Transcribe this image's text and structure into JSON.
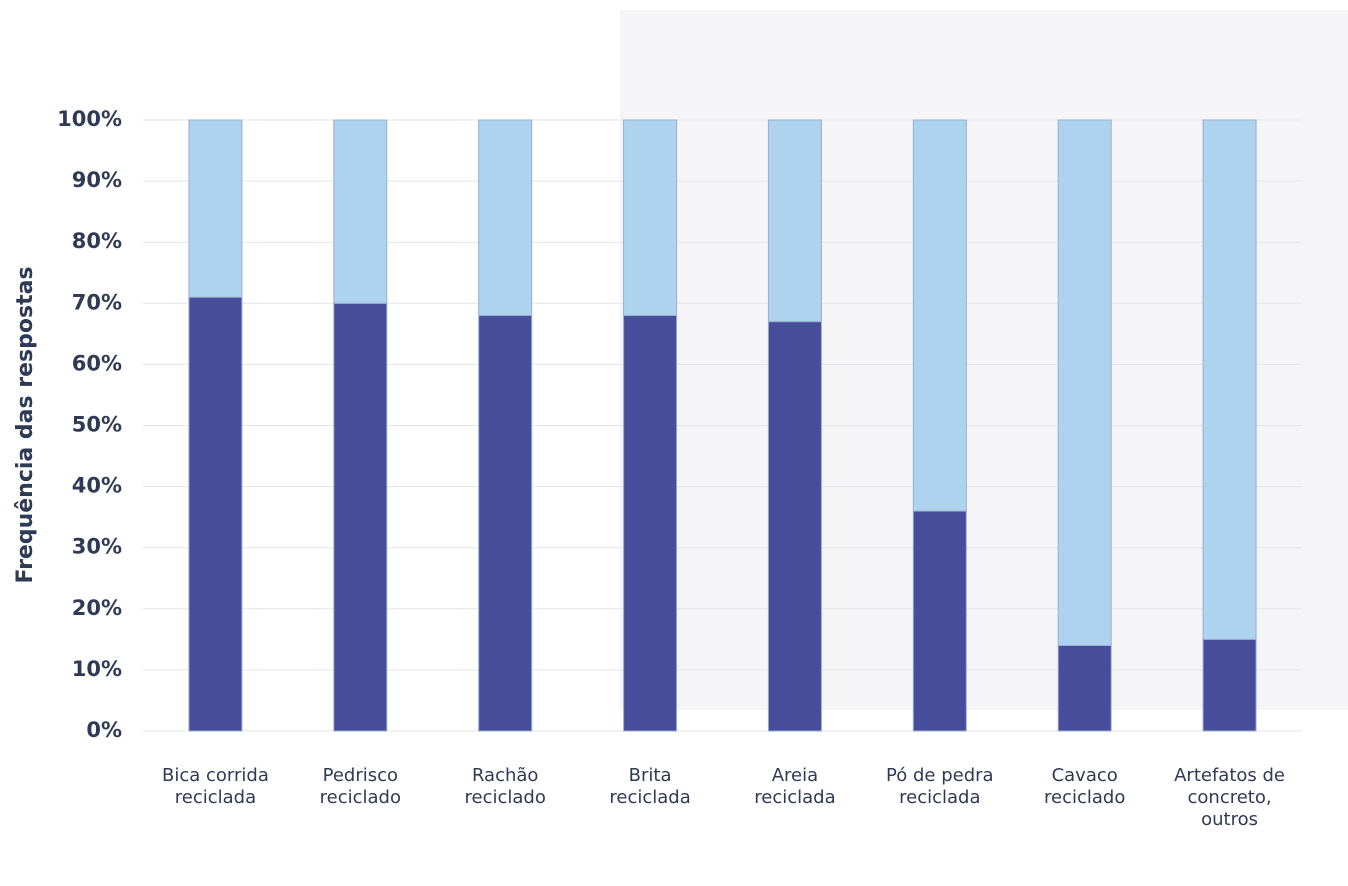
{
  "chart_data": {
    "type": "stacked-bar",
    "y_label": "Frequência das respostas",
    "categories": [
      [
        "Bica corrida",
        "reciclada"
      ],
      [
        "Pedrisco",
        "reciclado"
      ],
      [
        "Rachão",
        "reciclado"
      ],
      [
        "Brita",
        "reciclada"
      ],
      [
        "Areia",
        "reciclada"
      ],
      [
        "Pó de pedra",
        "reciclada"
      ],
      [
        "Cavaco",
        "reciclado"
      ],
      [
        "Artefatos de",
        "concreto,",
        "outros"
      ]
    ],
    "series": [
      {
        "color": "#464e9c",
        "values": [
          71,
          70,
          68,
          68,
          67,
          36,
          14,
          15
        ],
        "value_labels": [
          "71%",
          "70%",
          "68%",
          "68%",
          "67%",
          "36%",
          "14%",
          "15%"
        ]
      },
      {
        "color": "#aed3ee",
        "values": [
          29,
          30,
          32,
          32,
          33,
          64,
          86,
          85
        ]
      }
    ],
    "ylim": [
      0,
      100
    ],
    "yticks": [
      {
        "value": 0,
        "label": "0%"
      },
      {
        "value": 10,
        "label": "10%"
      },
      {
        "value": 20,
        "label": "20%"
      },
      {
        "value": 30,
        "label": "30%"
      },
      {
        "value": 40,
        "label": "40%"
      },
      {
        "value": 50,
        "label": "50%"
      },
      {
        "value": 60,
        "label": "60%"
      },
      {
        "value": 70,
        "label": "70%"
      },
      {
        "value": 80,
        "label": "80%"
      },
      {
        "value": 90,
        "label": "90%"
      },
      {
        "value": 100,
        "label": "100%"
      }
    ],
    "grid": true
  }
}
